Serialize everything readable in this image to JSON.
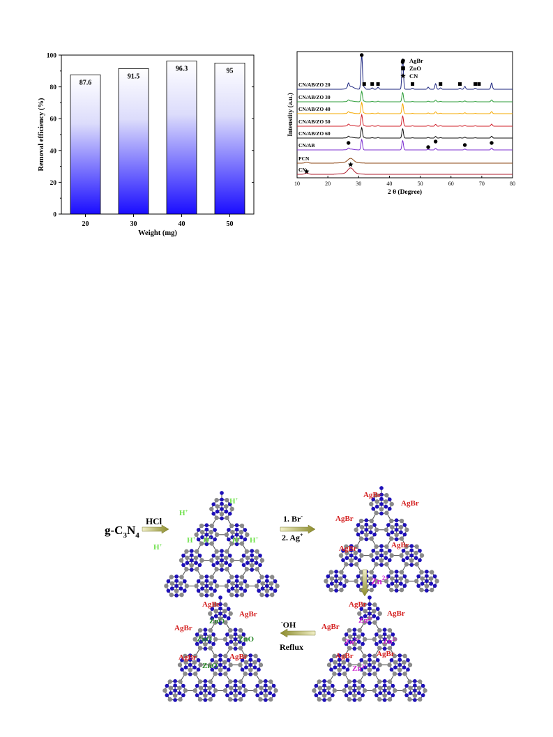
{
  "chart_data": [
    {
      "type": "bar",
      "categories": [
        "20",
        "30",
        "40",
        "50"
      ],
      "values": [
        87.6,
        91.5,
        96.3,
        95
      ],
      "data_labels": [
        "87.6",
        "91.5",
        "96.3",
        "95"
      ],
      "xlabel": "Weight (mg)",
      "ylabel": "Removal efficiency (%)",
      "ylim": [
        0,
        100
      ],
      "yticks": [
        "0",
        "20",
        "40",
        "60",
        "80",
        "100"
      ],
      "bar_fill": "gradient white-to-blue",
      "colors": {
        "bar_top": "#ffffff",
        "bar_bottom": "#1a0dff"
      }
    },
    {
      "type": "line",
      "xlabel": "2 θ (Degree)",
      "ylabel": "Intenstity (a.u.)",
      "xlim": [
        10,
        80
      ],
      "xticks": [
        "10",
        "20",
        "30",
        "40",
        "50",
        "60",
        "70",
        "80"
      ],
      "legend_position": "top-right",
      "legend": [
        {
          "marker": "circle",
          "label": "AgBr"
        },
        {
          "marker": "square",
          "label": "ZnO"
        },
        {
          "marker": "star",
          "label": "CN"
        }
      ],
      "series": [
        {
          "name": "CN/AB/ZO 20",
          "color": "#1a237e"
        },
        {
          "name": "CN/AB/ZO 30",
          "color": "#2e9e3a"
        },
        {
          "name": "CN/AB/ZO 40",
          "color": "#f5a800"
        },
        {
          "name": "CN/AB/ZO 50",
          "color": "#d0202a"
        },
        {
          "name": "CN/AB/ZO 60",
          "color": "#111111"
        },
        {
          "name": "CN/AB",
          "color": "#7b2fd0"
        },
        {
          "name": "PCN",
          "color": "#8b4513"
        },
        {
          "name": "CN",
          "color": "#b01c2e"
        }
      ],
      "agbr_peaks": [
        26.7,
        31.0,
        44.3,
        52.6,
        55.0,
        64.5,
        73.2
      ],
      "zno_peaks": [
        31.8,
        34.4,
        36.3,
        47.5,
        56.6,
        62.9,
        67.9,
        69.1
      ],
      "cn_peaks": [
        13.1,
        27.4
      ]
    }
  ],
  "scheme": {
    "start_label": "g-C",
    "start_sub1": "3",
    "start_mid": "N",
    "start_sub2": "4",
    "step1": "HCl",
    "step2_line1": "1. Br",
    "step2_line1_sup": "-",
    "step2_line2": "2. Ag",
    "step2_line2_sup": "+",
    "step3": "Zn",
    "step3_sup": "2+",
    "step4_line1_sup": "-",
    "step4_line1": "OH",
    "step4_line2": "Reflux",
    "h_label": "H",
    "h_sup": "+",
    "agbr": "AgBr",
    "zno": "ZnO",
    "zn": "Zn",
    "zn_sup": "2+",
    "colors": {
      "nitrogen": "#1e10b8",
      "carbon": "#8a8a8a",
      "bond": "#555555",
      "agbr": "#d42020",
      "zno": "#2e8b2e",
      "zn": "#cc22cc",
      "hplus": "#6ee04a"
    }
  }
}
